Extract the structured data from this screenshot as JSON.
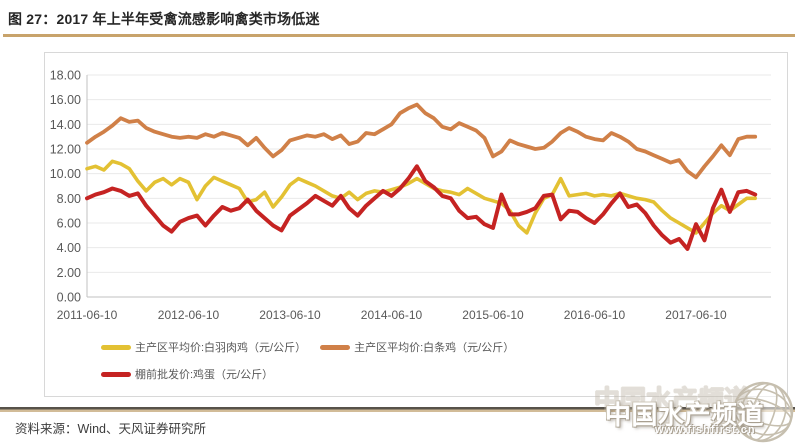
{
  "figure": {
    "title": "图 27：2017 年上半年受禽流感影响禽类市场低迷",
    "source": "资料来源：Wind、天风证券研究所"
  },
  "watermark": {
    "text": "中国水产频道",
    "url": "www.fishfirst.cn"
  },
  "chart_data": {
    "type": "line",
    "title": "",
    "xlabel": "",
    "ylabel": "",
    "ylim": [
      0,
      18
    ],
    "y_tick_step": 2,
    "y_tick_labels": [
      "0.00",
      "2.00",
      "4.00",
      "6.00",
      "8.00",
      "10.00",
      "12.00",
      "14.00",
      "16.00",
      "18.00"
    ],
    "grid": "horizontal",
    "legend_position": "bottom",
    "x_axis": {
      "tick_labels": [
        "2011-06-10",
        "2012-06-10",
        "2013-06-10",
        "2014-06-10",
        "2015-06-10",
        "2016-06-10",
        "2017-06-10"
      ],
      "frequency": "monthly",
      "start": "2011-06",
      "end": "2018-01"
    },
    "series": [
      {
        "id": "white-feather-broiler",
        "name": "主产区平均价:白羽肉鸡（元/公斤）",
        "color": "#e3c133",
        "line_width": 3.6,
        "zindex": 1,
        "legend_row": 1,
        "values": [
          10.4,
          10.6,
          10.3,
          11.0,
          10.8,
          10.4,
          9.4,
          8.6,
          9.3,
          9.6,
          9.1,
          9.6,
          9.3,
          7.9,
          9.0,
          9.7,
          9.4,
          9.1,
          8.8,
          7.7,
          7.9,
          8.5,
          7.3,
          8.1,
          9.1,
          9.6,
          9.3,
          9.0,
          8.6,
          8.2,
          8.0,
          8.5,
          7.9,
          8.4,
          8.6,
          8.5,
          8.7,
          8.9,
          9.2,
          9.6,
          9.2,
          8.8,
          8.6,
          8.5,
          8.3,
          8.8,
          8.4,
          8.0,
          7.8,
          7.6,
          7.0,
          5.8,
          5.2,
          6.8,
          8.0,
          8.3,
          9.6,
          8.2,
          8.3,
          8.4,
          8.2,
          8.3,
          8.2,
          8.4,
          8.2,
          8.0,
          7.9,
          7.7,
          7.0,
          6.4,
          6.0,
          5.6,
          5.2,
          6.0,
          6.8,
          7.4,
          7.0,
          7.5,
          8.0,
          8.0
        ]
      },
      {
        "id": "carcass-chicken",
        "name": "主产区平均价:白条鸡（元/公斤）",
        "color": "#d08048",
        "line_width": 3.8,
        "zindex": 0,
        "legend_row": 1,
        "values": [
          12.5,
          13.0,
          13.4,
          13.9,
          14.5,
          14.2,
          14.3,
          13.7,
          13.4,
          13.2,
          13.0,
          12.9,
          13.0,
          12.9,
          13.2,
          13.0,
          13.3,
          13.1,
          12.9,
          12.3,
          12.9,
          12.1,
          11.4,
          11.9,
          12.7,
          12.9,
          13.1,
          13.0,
          13.2,
          12.8,
          13.1,
          12.4,
          12.6,
          13.3,
          13.2,
          13.6,
          14.0,
          14.9,
          15.3,
          15.6,
          14.9,
          14.5,
          13.8,
          13.6,
          14.1,
          13.8,
          13.5,
          12.9,
          11.4,
          11.8,
          12.7,
          12.4,
          12.2,
          12.0,
          12.1,
          12.6,
          13.3,
          13.7,
          13.4,
          13.0,
          12.8,
          12.7,
          13.3,
          13.0,
          12.6,
          12.0,
          11.8,
          11.5,
          11.2,
          10.9,
          11.1,
          10.2,
          9.7,
          10.6,
          11.4,
          12.3,
          11.5,
          12.8,
          13.0,
          13.0
        ]
      },
      {
        "id": "egg-wholesale",
        "name": "棚前批发价:鸡蛋（元/公斤）",
        "color": "#c52322",
        "line_width": 4,
        "zindex": 2,
        "legend_row": 2,
        "values": [
          8.0,
          8.3,
          8.5,
          8.8,
          8.6,
          8.2,
          8.4,
          7.4,
          6.6,
          5.8,
          5.3,
          6.1,
          6.4,
          6.6,
          5.8,
          6.6,
          7.3,
          7.0,
          7.2,
          7.9,
          7.0,
          6.4,
          5.8,
          5.4,
          6.6,
          7.1,
          7.6,
          8.2,
          7.8,
          7.4,
          8.2,
          7.2,
          6.6,
          7.4,
          8.0,
          8.6,
          8.2,
          8.8,
          9.6,
          10.6,
          9.4,
          8.9,
          8.2,
          8.0,
          7.0,
          6.4,
          6.5,
          5.9,
          5.6,
          8.3,
          6.7,
          6.7,
          6.9,
          7.2,
          8.2,
          8.3,
          6.3,
          7.0,
          6.9,
          6.4,
          6.0,
          6.7,
          7.6,
          8.4,
          7.3,
          7.5,
          6.8,
          5.8,
          5.0,
          4.4,
          4.7,
          3.9,
          5.9,
          4.6,
          7.2,
          8.7,
          6.9,
          8.5,
          8.6,
          8.3
        ]
      }
    ]
  }
}
